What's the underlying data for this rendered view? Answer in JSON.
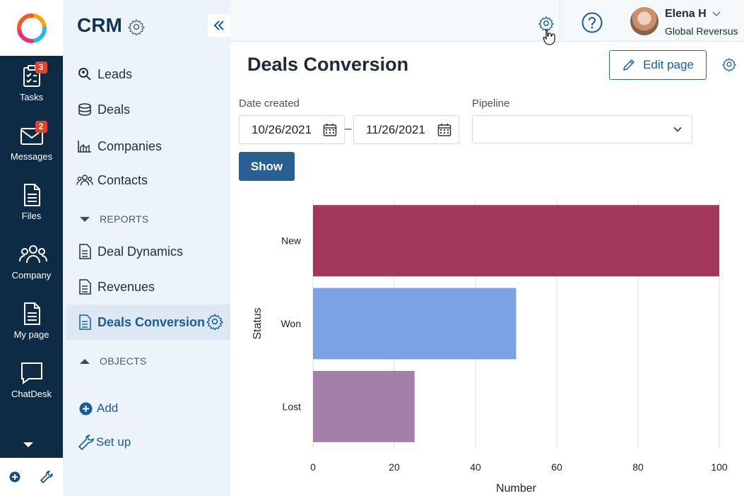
{
  "rail": {
    "items": [
      {
        "label": "Tasks",
        "icon": "tasks-icon",
        "badge": "3"
      },
      {
        "label": "Messages",
        "icon": "messages-icon",
        "badge": "2"
      },
      {
        "label": "Files",
        "icon": "files-icon",
        "badge": ""
      },
      {
        "label": "Company",
        "icon": "company-icon",
        "badge": ""
      },
      {
        "label": "My page",
        "icon": "my-page-icon",
        "badge": ""
      },
      {
        "label": "ChatDesk",
        "icon": "chatdesk-icon",
        "badge": ""
      }
    ]
  },
  "sidebar": {
    "title": "CRM",
    "items": [
      {
        "label": "Leads",
        "icon": "leads-icon"
      },
      {
        "label": "Deals",
        "icon": "deals-icon"
      },
      {
        "label": "Companies",
        "icon": "companies-icon"
      },
      {
        "label": "Contacts",
        "icon": "contacts-icon"
      }
    ],
    "reports_label": "REPORTS",
    "reports": [
      {
        "label": "Deal Dynamics",
        "icon": "report-icon"
      },
      {
        "label": "Revenues",
        "icon": "report-icon"
      },
      {
        "label": "Deals Conversion",
        "icon": "report-icon",
        "active": true
      }
    ],
    "objects_label": "OBJECTS",
    "add_label": "Add",
    "setup_label": "Set up"
  },
  "header": {
    "user_name": "Elena H",
    "user_org": "Global Reversus"
  },
  "main": {
    "title": "Deals Conversion",
    "edit_label": "Edit page",
    "filters": {
      "date_label": "Date created",
      "date_from": "10/26/2021",
      "date_to": "11/26/2021",
      "pipeline_label": "Pipeline",
      "pipeline_value": ""
    },
    "show_label": "Show"
  },
  "colors": {
    "rail_bg": "#0e2b46",
    "sidebar_bg": "#edf3fa",
    "accent": "#2a5f92",
    "badge": "#e0452b"
  },
  "chart_data": {
    "type": "bar",
    "orientation": "horizontal",
    "categories": [
      "New",
      "Won",
      "Lost"
    ],
    "values": [
      100,
      50,
      25
    ],
    "colors": [
      "#a3385c",
      "#7ba3e3",
      "#a37faa"
    ],
    "xlabel": "Number",
    "ylabel": "Status",
    "xlim": [
      0,
      100
    ],
    "xticks": [
      0,
      20,
      40,
      60,
      80,
      100
    ],
    "grid": "vertical"
  }
}
